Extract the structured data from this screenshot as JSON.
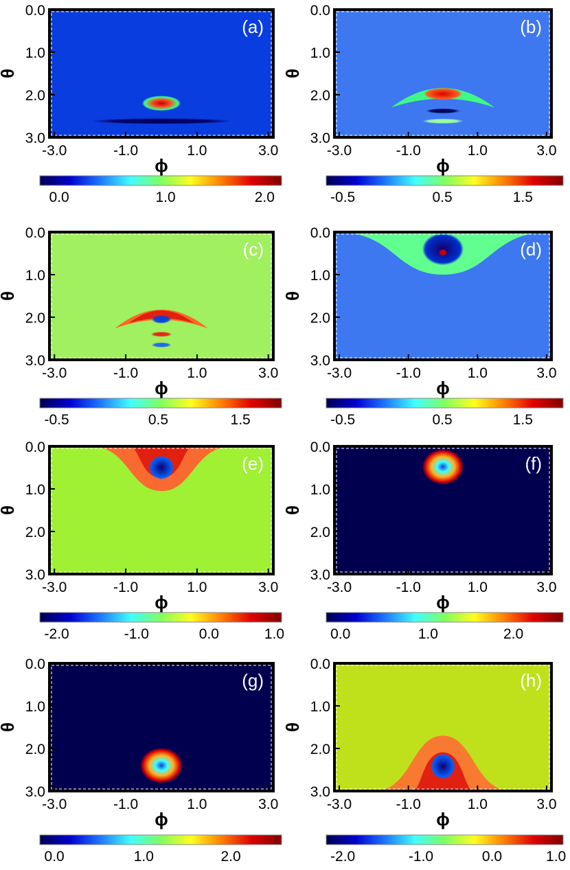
{
  "figure": {
    "xlabel": "ϕ",
    "ylabel": "θ",
    "xticks": [
      "-3.0",
      "-1.0",
      "1.0",
      "3.0"
    ],
    "yticks": [
      "0.0",
      "1.0",
      "2.0",
      "3.0"
    ]
  },
  "chart_data": [
    {
      "type": "heatmap",
      "label": "(a)",
      "xlabel": "ϕ",
      "ylabel": "θ",
      "xlim": [
        -3.14,
        3.14
      ],
      "ylim": [
        0.0,
        3.0
      ],
      "background": "#0a3de0",
      "features": [
        {
          "shape": "blob",
          "x": 0.0,
          "y": 2.2,
          "rx": 0.55,
          "ry": 0.18,
          "colors": [
            "#bf0000",
            "#ff4020",
            "#40ff80"
          ]
        },
        {
          "shape": "band",
          "x": 0.0,
          "y": 2.62,
          "rx": 2.0,
          "ry": 0.07,
          "colors": [
            "#00005c"
          ]
        }
      ],
      "colorbar": {
        "ticks": [
          "0.0",
          "1.0",
          "2.0"
        ],
        "tick_positions": [
          0.08,
          0.52,
          0.93
        ]
      }
    },
    {
      "type": "heatmap",
      "label": "(b)",
      "xlabel": "ϕ",
      "ylabel": "θ",
      "xlim": [
        -3.14,
        3.14
      ],
      "ylim": [
        0.0,
        3.0
      ],
      "background": "#3d78f0",
      "features": [
        {
          "shape": "arc",
          "x": 0.0,
          "y": 2.05,
          "rx": 1.5,
          "ry": 0.42,
          "colors": [
            "#40ff80"
          ]
        },
        {
          "shape": "blob",
          "x": 0.0,
          "y": 1.98,
          "rx": 0.55,
          "ry": 0.14,
          "colors": [
            "#d80000",
            "#ff6020"
          ]
        },
        {
          "shape": "band",
          "x": 0.0,
          "y": 2.38,
          "rx": 0.5,
          "ry": 0.06,
          "colors": [
            "#00005c"
          ]
        },
        {
          "shape": "band",
          "x": 0.0,
          "y": 2.62,
          "rx": 0.6,
          "ry": 0.06,
          "colors": [
            "#a0ffa0"
          ]
        }
      ],
      "colorbar": {
        "ticks": [
          "-0.5",
          "0.5",
          "1.5"
        ],
        "tick_positions": [
          0.07,
          0.49,
          0.83
        ]
      }
    },
    {
      "type": "heatmap",
      "label": "(c)",
      "xlabel": "ϕ",
      "ylabel": "θ",
      "xlim": [
        -3.14,
        3.14
      ],
      "ylim": [
        0.0,
        3.0
      ],
      "background": "#a0f060",
      "features": [
        {
          "shape": "arc",
          "x": 0.0,
          "y": 2.02,
          "rx": 1.3,
          "ry": 0.4,
          "colors": [
            "#e02010",
            "#ff6020"
          ]
        },
        {
          "shape": "blob",
          "x": 0.0,
          "y": 2.05,
          "rx": 0.28,
          "ry": 0.1,
          "colors": [
            "#0040e0"
          ]
        },
        {
          "shape": "band",
          "x": 0.0,
          "y": 2.4,
          "rx": 0.3,
          "ry": 0.06,
          "colors": [
            "#e82010"
          ]
        },
        {
          "shape": "band",
          "x": 0.0,
          "y": 2.65,
          "rx": 0.28,
          "ry": 0.06,
          "colors": [
            "#2060f0"
          ]
        }
      ],
      "colorbar": {
        "ticks": [
          "-0.5",
          "0.5",
          "1.5"
        ],
        "tick_positions": [
          0.07,
          0.49,
          0.83
        ]
      }
    },
    {
      "type": "heatmap",
      "label": "(d)",
      "xlabel": "ϕ",
      "ylabel": "θ",
      "xlim": [
        -3.14,
        3.14
      ],
      "ylim": [
        0.0,
        3.0
      ],
      "background": "#3d78f0",
      "features": [
        {
          "shape": "cap",
          "x": 0.0,
          "y": 0.0,
          "rx": 3.1,
          "ry": 1.0,
          "colors": [
            "#60ff90"
          ]
        },
        {
          "shape": "blob",
          "x": 0.0,
          "y": 0.4,
          "rx": 0.6,
          "ry": 0.38,
          "colors": [
            "#10006e",
            "#0030d0"
          ]
        },
        {
          "shape": "blob",
          "x": 0.0,
          "y": 0.48,
          "rx": 0.12,
          "ry": 0.08,
          "colors": [
            "#d00000"
          ]
        }
      ],
      "colorbar": {
        "ticks": [
          "-0.5",
          "0.5",
          "1.5"
        ],
        "tick_positions": [
          0.07,
          0.49,
          0.83
        ]
      }
    },
    {
      "type": "heatmap",
      "label": "(e)",
      "xlabel": "ϕ",
      "ylabel": "θ",
      "xlim": [
        -3.14,
        3.14
      ],
      "ylim": [
        0.0,
        3.0
      ],
      "background": "#a0f034",
      "features": [
        {
          "shape": "cap",
          "x": 0.0,
          "y": 0.0,
          "rx": 2.0,
          "ry": 1.05,
          "colors": [
            "#f86a30",
            "#e02010"
          ]
        },
        {
          "shape": "blob",
          "x": 0.0,
          "y": 0.5,
          "rx": 0.35,
          "ry": 0.28,
          "colors": [
            "#10006e",
            "#0060ff"
          ]
        }
      ],
      "colorbar": {
        "ticks": [
          "-2.0",
          "-1.0",
          "0.0",
          "1.0"
        ],
        "tick_positions": [
          0.07,
          0.4,
          0.7,
          0.97
        ]
      }
    },
    {
      "type": "heatmap",
      "label": "(f)",
      "xlabel": "ϕ",
      "ylabel": "θ",
      "xlim": [
        -3.14,
        3.14
      ],
      "ylim": [
        0.0,
        3.0
      ],
      "background": "#00004f",
      "features": [
        {
          "shape": "blob",
          "x": 0.0,
          "y": 0.48,
          "rx": 0.6,
          "ry": 0.42,
          "colors": [
            "#1040e0",
            "#40ffff",
            "#ffb020",
            "#d80000"
          ]
        }
      ],
      "colorbar": {
        "ticks": [
          "0.0",
          "1.0",
          "2.0"
        ],
        "tick_positions": [
          0.06,
          0.43,
          0.79
        ]
      }
    },
    {
      "type": "heatmap",
      "label": "(g)",
      "xlabel": "ϕ",
      "ylabel": "θ",
      "xlim": [
        -3.14,
        3.14
      ],
      "ylim": [
        0.0,
        3.0
      ],
      "background": "#00004f",
      "features": [
        {
          "shape": "blob",
          "x": 0.0,
          "y": 2.4,
          "rx": 0.6,
          "ry": 0.42,
          "colors": [
            "#1040e0",
            "#40ffff",
            "#ffb020",
            "#d80000"
          ]
        }
      ],
      "colorbar": {
        "ticks": [
          "0.0",
          "1.0",
          "2.0"
        ],
        "tick_positions": [
          0.06,
          0.43,
          0.79
        ]
      }
    },
    {
      "type": "heatmap",
      "label": "(h)",
      "xlabel": "ϕ",
      "ylabel": "θ",
      "xlim": [
        -3.14,
        3.14
      ],
      "ylim": [
        0.0,
        3.0
      ],
      "background": "#bfe11c",
      "features": [
        {
          "shape": "cap",
          "x": 0.0,
          "y": 3.0,
          "rx": 2.0,
          "ry": 1.3,
          "colors": [
            "#f87a30",
            "#e02010"
          ]
        },
        {
          "shape": "blob",
          "x": 0.0,
          "y": 2.42,
          "rx": 0.35,
          "ry": 0.3,
          "colors": [
            "#10006e",
            "#0060ff"
          ]
        }
      ],
      "colorbar": {
        "ticks": [
          "-2.0",
          "-1.0",
          "0.0",
          "1.0"
        ],
        "tick_positions": [
          0.07,
          0.4,
          0.7,
          0.97
        ]
      }
    }
  ],
  "colormap": [
    "#00004f",
    "#0000d0",
    "#1e78ff",
    "#40ffff",
    "#80ff60",
    "#ffff20",
    "#ff8000",
    "#e00000",
    "#800000"
  ]
}
